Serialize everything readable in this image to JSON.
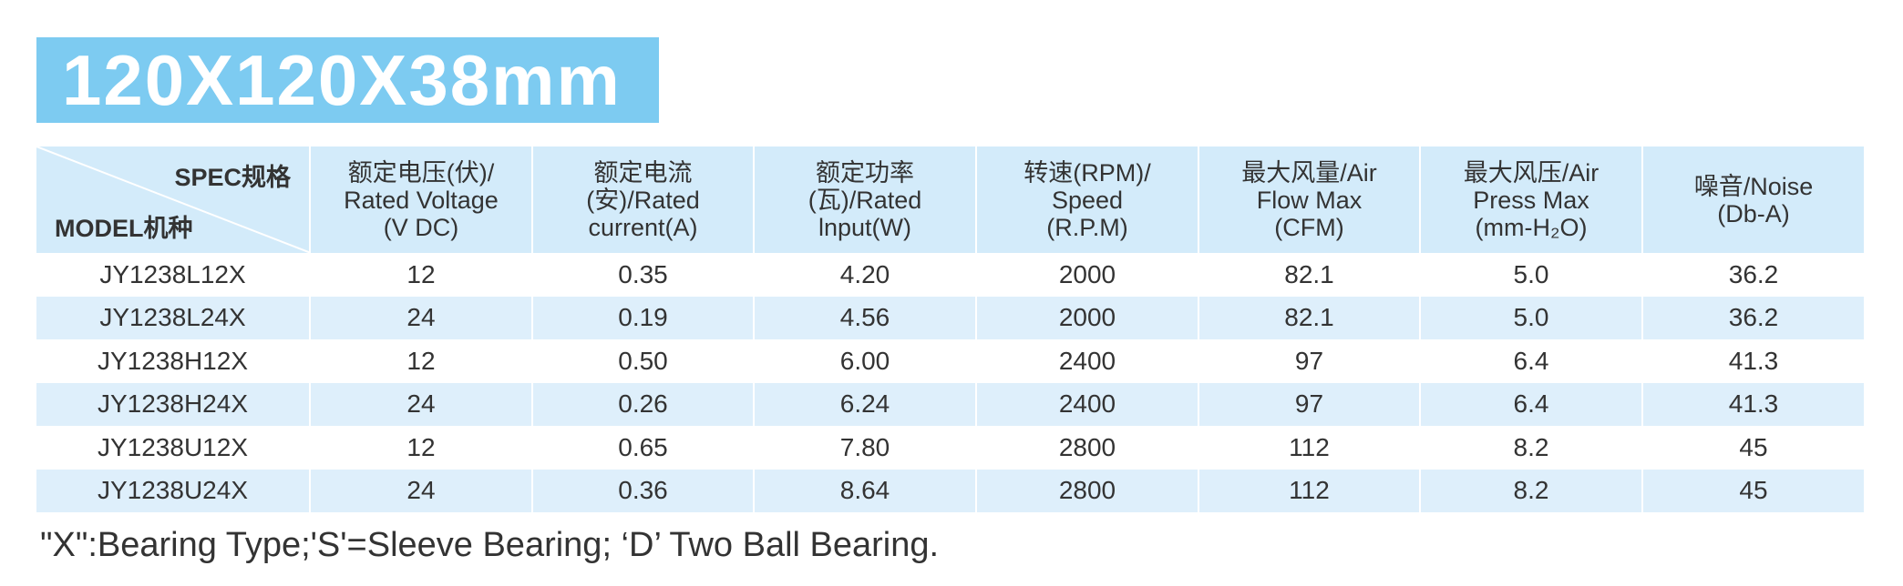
{
  "header": {
    "title": "120X120X38mm"
  },
  "table": {
    "corner": {
      "spec": "SPEC规格",
      "model": "MODEL机种"
    },
    "columns": [
      [
        "额定电压(伏)/",
        "Rated Voltage",
        "(V DC)"
      ],
      [
        "额定电流",
        "(安)/Rated",
        "current(A)"
      ],
      [
        "额定功率",
        "(瓦)/Rated",
        "lnput(W)"
      ],
      [
        "转速(RPM)/",
        "Speed",
        "(R.P.M)"
      ],
      [
        "最大风量/Air",
        "Flow Max",
        "(CFM)"
      ],
      [
        "最大风压/Air",
        "Press Max",
        "(mm-H₂O)"
      ],
      [
        "噪音/Noise",
        "(Db-A)"
      ]
    ],
    "rows": [
      [
        "JY1238L12X",
        "12",
        "0.35",
        "4.20",
        "2000",
        "82.1",
        "5.0",
        "36.2"
      ],
      [
        "JY1238L24X",
        "24",
        "0.19",
        "4.56",
        "2000",
        "82.1",
        "5.0",
        "36.2"
      ],
      [
        "JY1238H12X",
        "12",
        "0.50",
        "6.00",
        "2400",
        "97",
        "6.4",
        "41.3"
      ],
      [
        "JY1238H24X",
        "24",
        "0.26",
        "6.24",
        "2400",
        "97",
        "6.4",
        "41.3"
      ],
      [
        "JY1238U12X",
        "12",
        "0.65",
        "7.80",
        "2800",
        "112",
        "8.2",
        "45"
      ],
      [
        "JY1238U24X",
        "24",
        "0.36",
        "8.64",
        "2800",
        "112",
        "8.2",
        "45"
      ]
    ]
  },
  "footnote": "\"X\":Bearing Type;'S'=Sleeve Bearing; ‘D’ Two Ball Bearing."
}
